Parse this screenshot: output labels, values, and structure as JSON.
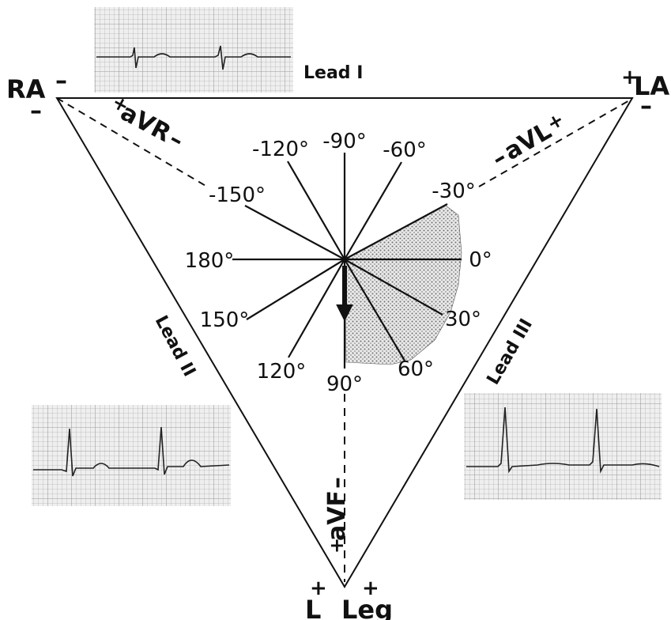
{
  "colors": {
    "ink": "#111111",
    "grid": "#b9b9b9",
    "grid_bg": "#eeeeee",
    "shade": "#c8c8c8"
  },
  "electrodes": {
    "ra": "RA",
    "la": "LA",
    "leg_l": "L",
    "leg": "Leg",
    "plus": "+",
    "minus": "–"
  },
  "leads": {
    "lead1": "Lead I",
    "lead2": "Lead II",
    "lead3": "Lead III",
    "avr": "aVR",
    "avl": "aVL",
    "avf": "aVF"
  },
  "angles": [
    "-90°",
    "-60°",
    "-30°",
    "0°",
    "30°",
    "60°",
    "90°",
    "120°",
    "150°",
    "180°",
    "-150°",
    "-120°"
  ],
  "axis": {
    "normal_range_deg": [
      -30,
      90
    ],
    "mean_axis_deg": 90
  },
  "icons": [
    "triangle-icon",
    "axis-arrow-icon",
    "ecg-strip-icon"
  ]
}
